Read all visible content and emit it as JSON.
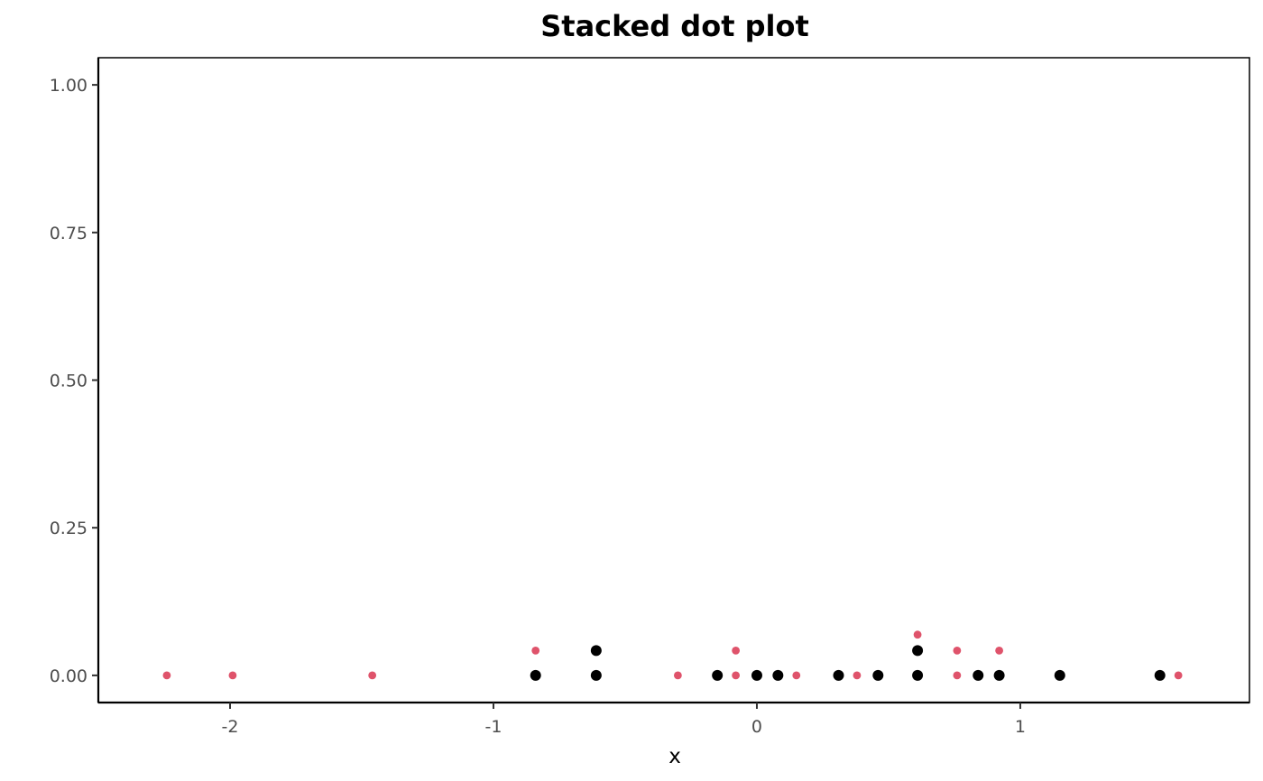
{
  "chart_data": {
    "type": "scatter",
    "title": "Stacked dot plot",
    "xlabel": "x",
    "ylabel": "",
    "xlim": [
      -2.5,
      1.87
    ],
    "ylim": [
      -0.046,
      1.046
    ],
    "x_ticks": [
      -2,
      -1,
      0,
      1
    ],
    "x_tick_labels": [
      "-2",
      "-1",
      "0",
      "1"
    ],
    "y_ticks": [
      0,
      0.25,
      0.5,
      0.75,
      1
    ],
    "y_tick_labels": [
      "0.00",
      "0.25",
      "0.50",
      "0.75",
      "1.00"
    ],
    "grid": false,
    "legend": "none",
    "series": [
      {
        "color": "#000000",
        "marker_size": "large",
        "points": [
          {
            "x": -0.84,
            "y": 0.0
          },
          {
            "x": -0.61,
            "y": 0.0
          },
          {
            "x": -0.61,
            "y": 0.042
          },
          {
            "x": -0.15,
            "y": 0.0
          },
          {
            "x": 0.0,
            "y": 0.0
          },
          {
            "x": 0.08,
            "y": 0.0
          },
          {
            "x": 0.31,
            "y": 0.0
          },
          {
            "x": 0.46,
            "y": 0.0
          },
          {
            "x": 0.61,
            "y": 0.0
          },
          {
            "x": 0.61,
            "y": 0.042
          },
          {
            "x": 0.84,
            "y": 0.0
          },
          {
            "x": 0.92,
            "y": 0.0
          },
          {
            "x": 1.15,
            "y": 0.0
          },
          {
            "x": 1.53,
            "y": 0.0
          }
        ]
      },
      {
        "color": "#df536b",
        "marker_size": "small",
        "points": [
          {
            "x": -2.24,
            "y": 0.0
          },
          {
            "x": -1.99,
            "y": 0.0
          },
          {
            "x": -1.46,
            "y": 0.0
          },
          {
            "x": -0.84,
            "y": 0.042
          },
          {
            "x": -0.3,
            "y": 0.0
          },
          {
            "x": -0.08,
            "y": 0.0
          },
          {
            "x": -0.08,
            "y": 0.042
          },
          {
            "x": 0.15,
            "y": 0.0
          },
          {
            "x": 0.38,
            "y": 0.0
          },
          {
            "x": 0.61,
            "y": 0.069
          },
          {
            "x": 0.76,
            "y": 0.0
          },
          {
            "x": 0.76,
            "y": 0.042
          },
          {
            "x": 0.92,
            "y": 0.042
          },
          {
            "x": 1.6,
            "y": 0.0
          }
        ]
      }
    ]
  }
}
